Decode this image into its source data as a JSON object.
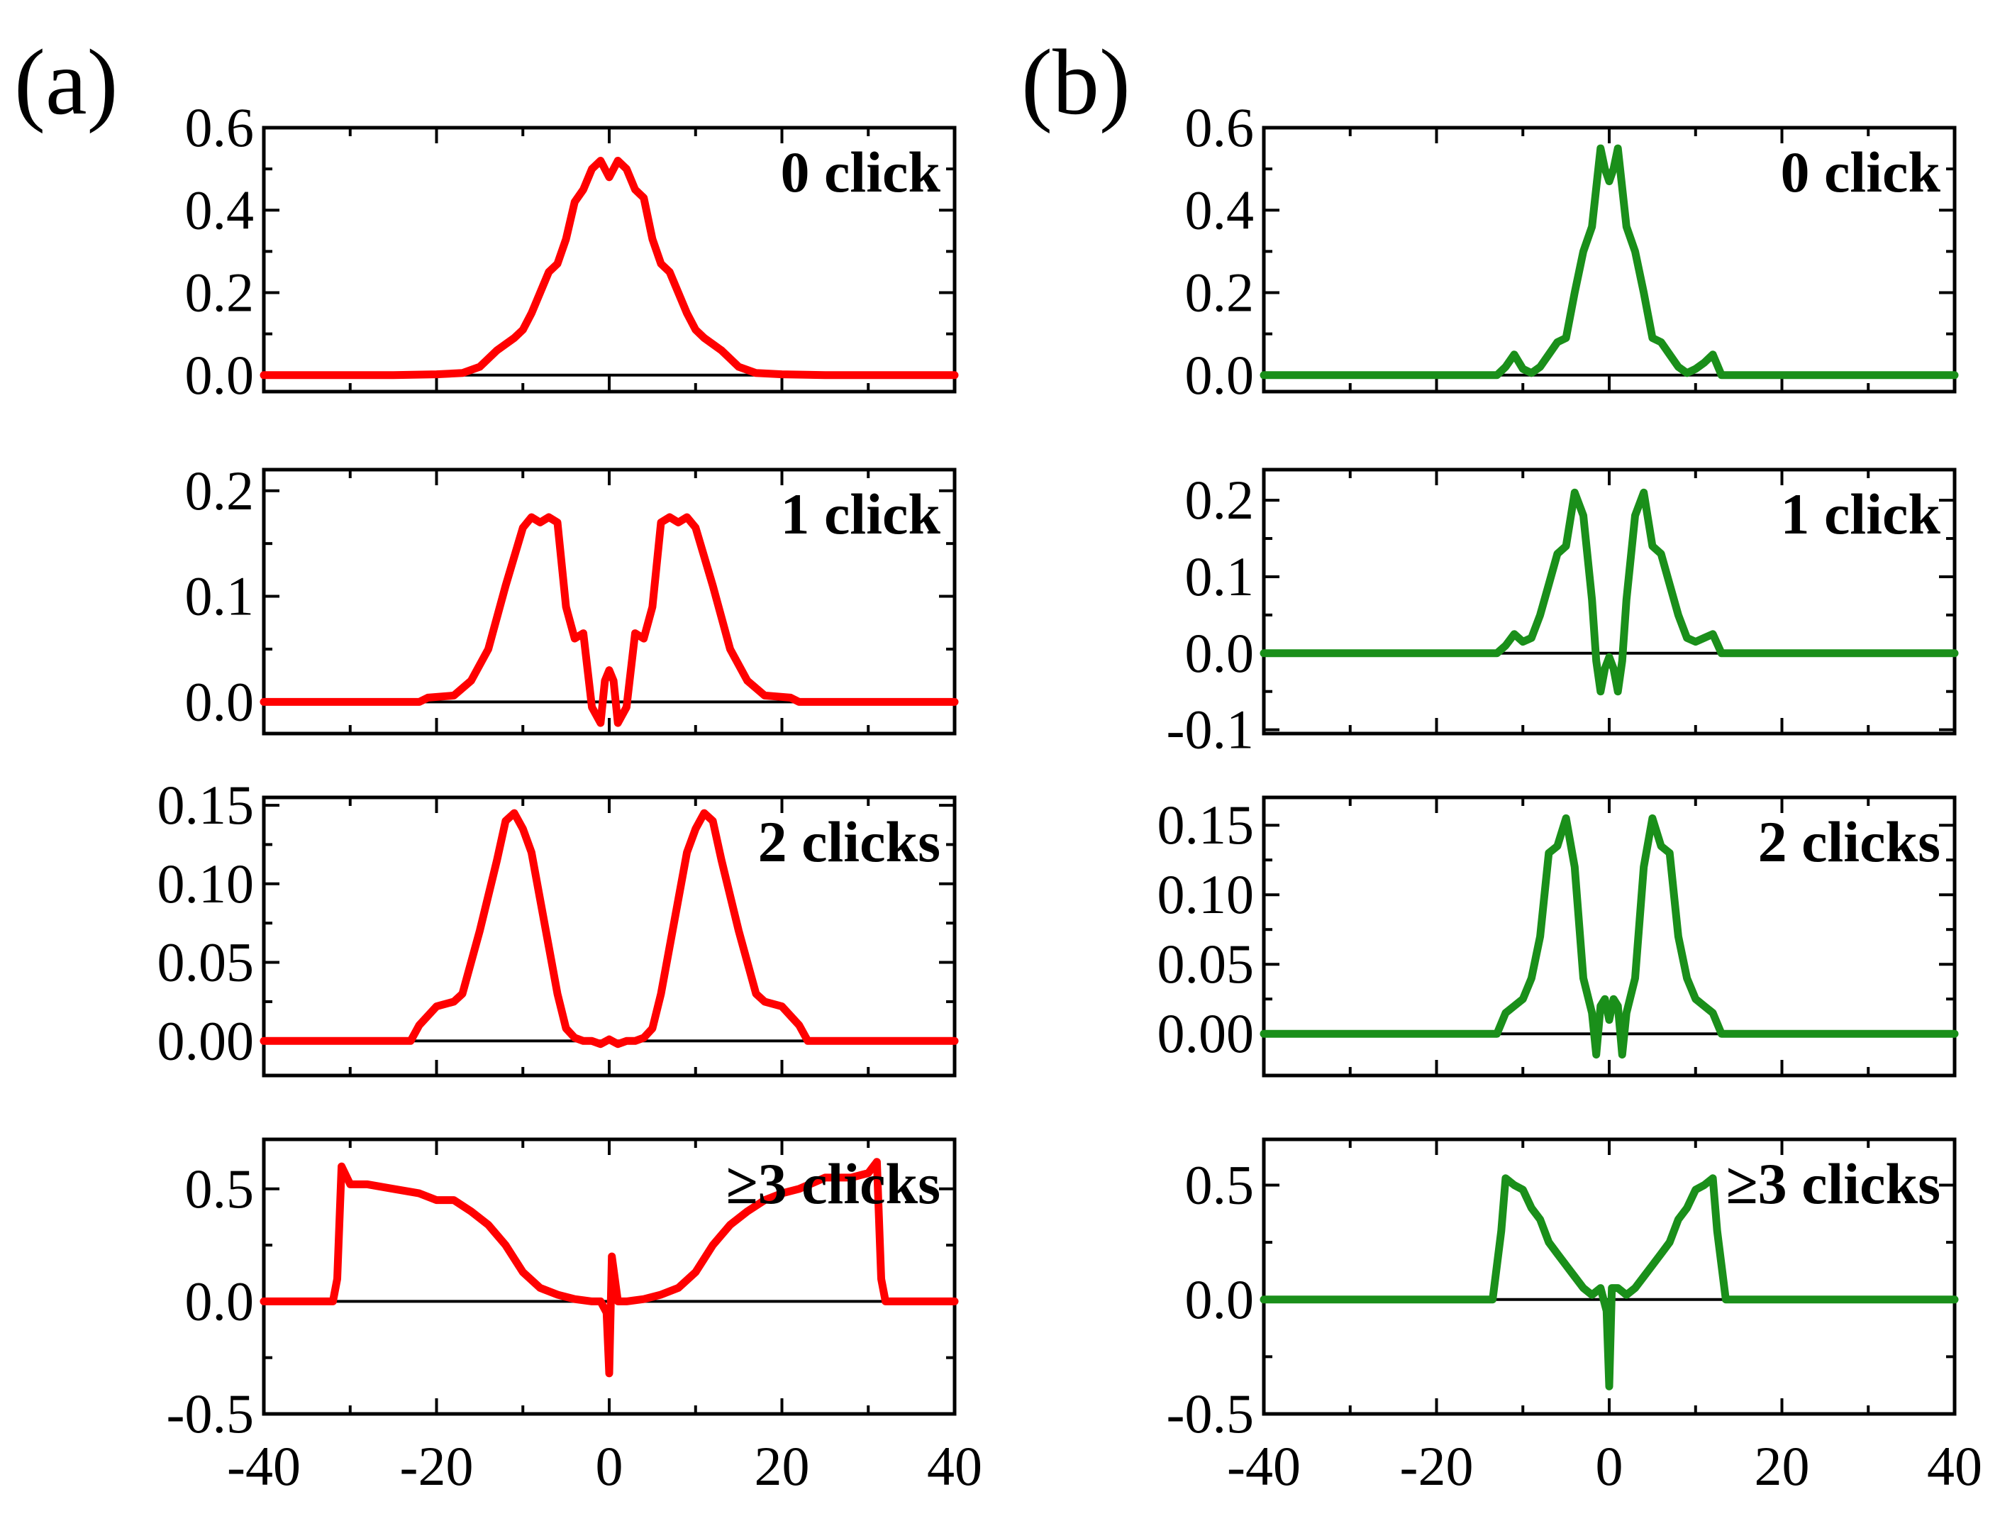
{
  "panel_labels": [
    "(a)",
    "(b)"
  ],
  "colors": {
    "a": "#ff0000",
    "b": "#1a8f1a"
  },
  "chart_data": [
    {
      "type": "line",
      "panel": "a",
      "color": "#ff0000",
      "label": "0 click",
      "xlim": [
        -40,
        40
      ],
      "ylim": [
        -0.04,
        0.6
      ],
      "yticks": [
        "0.0",
        "0.2",
        "0.4",
        "0.6"
      ],
      "yticks_values": [
        0.0,
        0.2,
        0.4,
        0.6
      ],
      "x": [
        -40,
        -25,
        -20,
        -17,
        -15,
        -13,
        -11,
        -10,
        -9,
        -8,
        -7,
        -6,
        -5,
        -4,
        -3,
        -2,
        -1,
        0,
        1,
        2,
        3,
        4,
        5,
        6,
        7,
        8,
        9,
        10,
        11,
        13,
        15,
        17,
        20,
        25,
        40
      ],
      "y": [
        0,
        0,
        0.002,
        0.005,
        0.02,
        0.06,
        0.09,
        0.11,
        0.15,
        0.2,
        0.25,
        0.27,
        0.33,
        0.42,
        0.45,
        0.5,
        0.52,
        0.48,
        0.52,
        0.5,
        0.45,
        0.43,
        0.33,
        0.27,
        0.25,
        0.2,
        0.15,
        0.11,
        0.09,
        0.06,
        0.02,
        0.005,
        0.002,
        0,
        0
      ]
    },
    {
      "type": "line",
      "panel": "a",
      "color": "#ff0000",
      "label": "1 click",
      "xlim": [
        -40,
        40
      ],
      "ylim": [
        -0.03,
        0.22
      ],
      "yticks": [
        "0.0",
        "0.1",
        "0.2"
      ],
      "yticks_values": [
        0.0,
        0.1,
        0.2
      ],
      "x": [
        -40,
        -22,
        -21,
        -18,
        -16,
        -14,
        -12,
        -10,
        -9,
        -8,
        -7,
        -6,
        -5,
        -4,
        -3,
        -2,
        -1,
        -0.5,
        0,
        0.5,
        1,
        2,
        3,
        4,
        5,
        6,
        7,
        8,
        9,
        10,
        12,
        14,
        16,
        18,
        21,
        22,
        40
      ],
      "y": [
        0,
        0,
        0.004,
        0.006,
        0.02,
        0.05,
        0.11,
        0.165,
        0.175,
        0.17,
        0.175,
        0.17,
        0.09,
        0.06,
        0.065,
        -0.005,
        -0.02,
        0.02,
        0.03,
        0.02,
        -0.02,
        -0.005,
        0.065,
        0.06,
        0.09,
        0.17,
        0.175,
        0.17,
        0.175,
        0.165,
        0.11,
        0.05,
        0.02,
        0.006,
        0.004,
        0,
        0
      ]
    },
    {
      "type": "line",
      "panel": "a",
      "color": "#ff0000",
      "label": "2 clicks",
      "xlim": [
        -40,
        40
      ],
      "ylim": [
        -0.022,
        0.155
      ],
      "yticks": [
        "0.00",
        "0.05",
        "0.10",
        "0.15"
      ],
      "yticks_values": [
        0.0,
        0.05,
        0.1,
        0.15
      ],
      "x": [
        -40,
        -23,
        -22,
        -20,
        -18,
        -17,
        -15,
        -13,
        -12,
        -11,
        -10,
        -9,
        -8,
        -7,
        -6,
        -5,
        -4,
        -3,
        -2,
        -1,
        0,
        1,
        2,
        3,
        4,
        5,
        6,
        7,
        8,
        9,
        10,
        11,
        12,
        13,
        15,
        17,
        18,
        20,
        22,
        23,
        40
      ],
      "y": [
        0,
        0,
        0.01,
        0.022,
        0.025,
        0.03,
        0.07,
        0.115,
        0.14,
        0.145,
        0.135,
        0.12,
        0.09,
        0.06,
        0.03,
        0.008,
        0.002,
        0,
        0,
        -0.002,
        0.001,
        -0.002,
        0,
        0,
        0.002,
        0.008,
        0.03,
        0.06,
        0.09,
        0.12,
        0.135,
        0.145,
        0.14,
        0.115,
        0.07,
        0.03,
        0.025,
        0.022,
        0.01,
        0,
        0
      ]
    },
    {
      "type": "line",
      "panel": "a",
      "color": "#ff0000",
      "label": "≥3 clicks",
      "xlim": [
        -40,
        40
      ],
      "ylim": [
        -0.5,
        0.72
      ],
      "yticks": [
        "-0.5",
        "0.0",
        "0.5"
      ],
      "yticks_values": [
        -0.5,
        0.0,
        0.5
      ],
      "x": [
        -40,
        -32,
        -31.5,
        -31,
        -30,
        -28,
        -25,
        -22,
        -20,
        -18,
        -16,
        -14,
        -12,
        -10,
        -8,
        -6,
        -4,
        -2,
        -1,
        -0.3,
        0,
        0.3,
        1,
        2,
        4,
        6,
        8,
        10,
        12,
        14,
        16,
        18,
        20,
        22,
        25,
        28,
        30,
        31,
        31.5,
        32,
        40
      ],
      "y": [
        0,
        0,
        0.1,
        0.6,
        0.52,
        0.52,
        0.5,
        0.48,
        0.45,
        0.45,
        0.4,
        0.34,
        0.25,
        0.13,
        0.06,
        0.03,
        0.01,
        0.0,
        0.0,
        -0.05,
        -0.32,
        0.2,
        0.0,
        0.0,
        0.01,
        0.03,
        0.06,
        0.13,
        0.25,
        0.34,
        0.4,
        0.45,
        0.48,
        0.5,
        0.55,
        0.55,
        0.57,
        0.62,
        0.1,
        0,
        0
      ]
    },
    {
      "type": "line",
      "panel": "b",
      "color": "#1a8f1a",
      "label": "0 click",
      "xlim": [
        -40,
        40
      ],
      "ylim": [
        -0.04,
        0.6
      ],
      "yticks": [
        "0.0",
        "0.2",
        "0.4",
        "0.6"
      ],
      "yticks_values": [
        0.0,
        0.2,
        0.4,
        0.6
      ],
      "x": [
        -40,
        -13,
        -12,
        -11,
        -10,
        -9,
        -8,
        -7,
        -6,
        -5,
        -4,
        -3,
        -2,
        -1,
        -0.5,
        0,
        0.5,
        1,
        2,
        3,
        4,
        5,
        6,
        7,
        8,
        9,
        10,
        11,
        12,
        13,
        40
      ],
      "y": [
        0,
        0,
        0.02,
        0.05,
        0.015,
        0.005,
        0.02,
        0.05,
        0.08,
        0.09,
        0.2,
        0.3,
        0.36,
        0.55,
        0.5,
        0.47,
        0.5,
        0.55,
        0.36,
        0.3,
        0.2,
        0.09,
        0.08,
        0.05,
        0.02,
        0.005,
        0.015,
        0.03,
        0.05,
        0,
        0
      ]
    },
    {
      "type": "line",
      "panel": "b",
      "color": "#1a8f1a",
      "label": "1 click",
      "xlim": [
        -40,
        40
      ],
      "ylim": [
        -0.105,
        0.24
      ],
      "yticks": [
        "-0.1",
        "0.0",
        "0.1",
        "0.2"
      ],
      "yticks_values": [
        -0.1,
        0.0,
        0.1,
        0.2
      ],
      "x": [
        -40,
        -13,
        -12,
        -11,
        -10,
        -9,
        -8,
        -7,
        -6,
        -5,
        -4,
        -3,
        -2,
        -1.5,
        -1,
        -0.5,
        0,
        0.5,
        1,
        1.5,
        2,
        3,
        4,
        5,
        6,
        7,
        8,
        9,
        10,
        11,
        12,
        13,
        40
      ],
      "y": [
        0,
        0,
        0.01,
        0.025,
        0.015,
        0.02,
        0.05,
        0.09,
        0.13,
        0.14,
        0.21,
        0.18,
        0.07,
        -0.01,
        -0.05,
        -0.02,
        -0.005,
        -0.02,
        -0.05,
        -0.01,
        0.07,
        0.18,
        0.21,
        0.14,
        0.13,
        0.09,
        0.05,
        0.02,
        0.015,
        0.02,
        0.025,
        0,
        0
      ]
    },
    {
      "type": "line",
      "panel": "b",
      "color": "#1a8f1a",
      "label": "2 clicks",
      "xlim": [
        -40,
        40
      ],
      "ylim": [
        -0.03,
        0.17
      ],
      "yticks": [
        "0.00",
        "0.05",
        "0.10",
        "0.15"
      ],
      "yticks_values": [
        0.0,
        0.05,
        0.1,
        0.15
      ],
      "x": [
        -40,
        -13,
        -12,
        -11,
        -10,
        -9,
        -8,
        -7,
        -6,
        -5,
        -4,
        -3,
        -2,
        -1.5,
        -1,
        -0.5,
        0,
        0.5,
        1,
        1.5,
        2,
        3,
        4,
        5,
        6,
        7,
        8,
        9,
        10,
        11,
        12,
        13,
        40
      ],
      "y": [
        0,
        0,
        0.015,
        0.02,
        0.025,
        0.04,
        0.07,
        0.13,
        0.135,
        0.155,
        0.12,
        0.04,
        0.015,
        -0.015,
        0.02,
        0.025,
        0.01,
        0.025,
        0.02,
        -0.015,
        0.015,
        0.04,
        0.12,
        0.155,
        0.135,
        0.13,
        0.07,
        0.04,
        0.025,
        0.02,
        0.015,
        0,
        0
      ]
    },
    {
      "type": "line",
      "panel": "b",
      "color": "#1a8f1a",
      "label": "≥3 clicks",
      "xlim": [
        -40,
        40
      ],
      "ylim": [
        -0.5,
        0.7
      ],
      "yticks": [
        "-0.5",
        "0.0",
        "0.5"
      ],
      "yticks_values": [
        -0.5,
        0.0,
        0.5
      ],
      "x": [
        -40,
        -13.5,
        -12.5,
        -12,
        -11,
        -10,
        -9,
        -8,
        -7,
        -6,
        -5,
        -4,
        -3,
        -2,
        -1,
        -0.3,
        0,
        0.3,
        1,
        2,
        3,
        4,
        5,
        6,
        7,
        8,
        9,
        10,
        11,
        12,
        12.5,
        13.5,
        40
      ],
      "y": [
        0,
        0,
        0.3,
        0.53,
        0.5,
        0.48,
        0.4,
        0.35,
        0.25,
        0.2,
        0.15,
        0.1,
        0.05,
        0.02,
        0.05,
        -0.05,
        -0.38,
        0.05,
        0.05,
        0.02,
        0.05,
        0.1,
        0.15,
        0.2,
        0.25,
        0.35,
        0.4,
        0.48,
        0.5,
        0.53,
        0.3,
        0,
        0
      ]
    }
  ],
  "x_axis": {
    "ticks": [
      "-40",
      "-20",
      "0",
      "20",
      "40"
    ],
    "ticks_values": [
      -40,
      -20,
      0,
      20,
      40
    ]
  }
}
